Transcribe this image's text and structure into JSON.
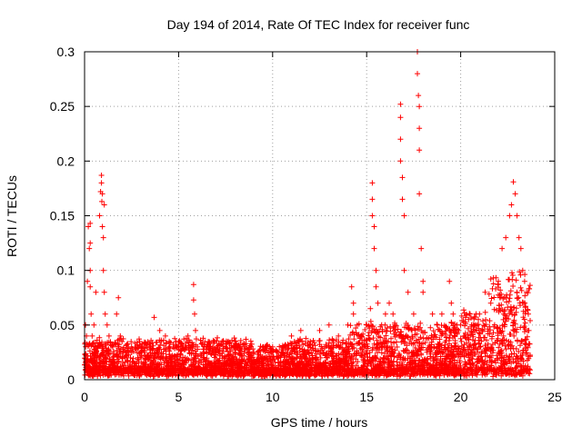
{
  "chart_data": {
    "type": "scatter",
    "title": "Day 194 of 2014, Rate Of TEC Index for receiver func",
    "xlabel": "GPS time / hours",
    "ylabel": "ROTI / TECUs",
    "xlim": [
      0,
      25
    ],
    "ylim": [
      0,
      0.3
    ],
    "grid": true,
    "marker": "+",
    "marker_color": "#ff0000",
    "xticks": [
      0,
      5,
      10,
      15,
      20,
      25
    ],
    "xtick_labels": [
      "0",
      "5",
      "10",
      "15",
      "20",
      "25"
    ],
    "yticks": [
      0,
      0.05,
      0.1,
      0.15,
      0.2,
      0.25,
      0.3
    ],
    "ytick_labels": [
      "0",
      "0.05",
      "0.1",
      "0.15",
      "0.2",
      "0.25",
      "0.3"
    ],
    "series": [
      {
        "name": "ROTI",
        "x": [
          0.05,
          0.1,
          0.15,
          0.2,
          0.25,
          0.3,
          0.3,
          0.3,
          0.3,
          0.35,
          0.4,
          0.5,
          0.6,
          0.8,
          0.85,
          0.9,
          0.9,
          0.92,
          0.95,
          0.95,
          1.0,
          1.0,
          1.05,
          1.05,
          1.1,
          1.2,
          1.3,
          1.5,
          1.7,
          1.8,
          1.9,
          2.0,
          2.5,
          3.0,
          3.5,
          3.7,
          4.0,
          4.3,
          4.5,
          5.0,
          5.5,
          5.8,
          5.8,
          5.85,
          5.9,
          6.0,
          6.5,
          7.0,
          7.5,
          8.0,
          8.5,
          9.0,
          9.5,
          10.0,
          10.5,
          11.0,
          11.5,
          12.0,
          12.5,
          13.0,
          13.5,
          14.0,
          14.2,
          14.3,
          14.3,
          14.5,
          15.0,
          15.2,
          15.3,
          15.3,
          15.3,
          15.4,
          15.4,
          15.5,
          15.5,
          15.6,
          15.8,
          16.0,
          16.2,
          16.4,
          16.5,
          16.8,
          16.8,
          16.8,
          16.8,
          16.9,
          16.9,
          17.0,
          17.0,
          17.2,
          17.5,
          17.7,
          17.7,
          17.75,
          17.8,
          17.8,
          17.8,
          17.8,
          17.9,
          18.0,
          18.0,
          18.5,
          19.0,
          19.4,
          19.5,
          19.6,
          19.8,
          20.0,
          20.2,
          20.5,
          21.0,
          21.3,
          21.6,
          22.0,
          22.2,
          22.4,
          22.6,
          22.7,
          22.8,
          22.9,
          23.0,
          23.1,
          23.2,
          23.3,
          23.4,
          23.5,
          23.6
        ],
        "y": [
          0.05,
          0.04,
          0.09,
          0.14,
          0.12,
          0.143,
          0.125,
          0.1,
          0.085,
          0.06,
          0.04,
          0.05,
          0.08,
          0.15,
          0.172,
          0.187,
          0.18,
          0.163,
          0.17,
          0.14,
          0.13,
          0.1,
          0.16,
          0.08,
          0.06,
          0.05,
          0.04,
          0.03,
          0.06,
          0.075,
          0.04,
          0.02,
          0.03,
          0.025,
          0.03,
          0.057,
          0.045,
          0.04,
          0.035,
          0.03,
          0.04,
          0.087,
          0.073,
          0.06,
          0.045,
          0.03,
          0.03,
          0.025,
          0.03,
          0.035,
          0.03,
          0.025,
          0.03,
          0.03,
          0.025,
          0.04,
          0.045,
          0.035,
          0.045,
          0.05,
          0.04,
          0.05,
          0.085,
          0.07,
          0.06,
          0.05,
          0.05,
          0.065,
          0.18,
          0.165,
          0.15,
          0.14,
          0.12,
          0.1,
          0.085,
          0.07,
          0.05,
          0.06,
          0.07,
          0.06,
          0.05,
          0.252,
          0.24,
          0.22,
          0.2,
          0.185,
          0.165,
          0.15,
          0.1,
          0.08,
          0.06,
          0.3,
          0.28,
          0.26,
          0.25,
          0.23,
          0.21,
          0.17,
          0.12,
          0.09,
          0.08,
          0.06,
          0.06,
          0.09,
          0.07,
          0.06,
          0.05,
          0.05,
          0.04,
          0.06,
          0.06,
          0.08,
          0.07,
          0.09,
          0.12,
          0.13,
          0.15,
          0.16,
          0.181,
          0.17,
          0.15,
          0.13,
          0.12,
          0.1,
          0.09,
          0.08,
          0.06
        ]
      }
    ]
  }
}
